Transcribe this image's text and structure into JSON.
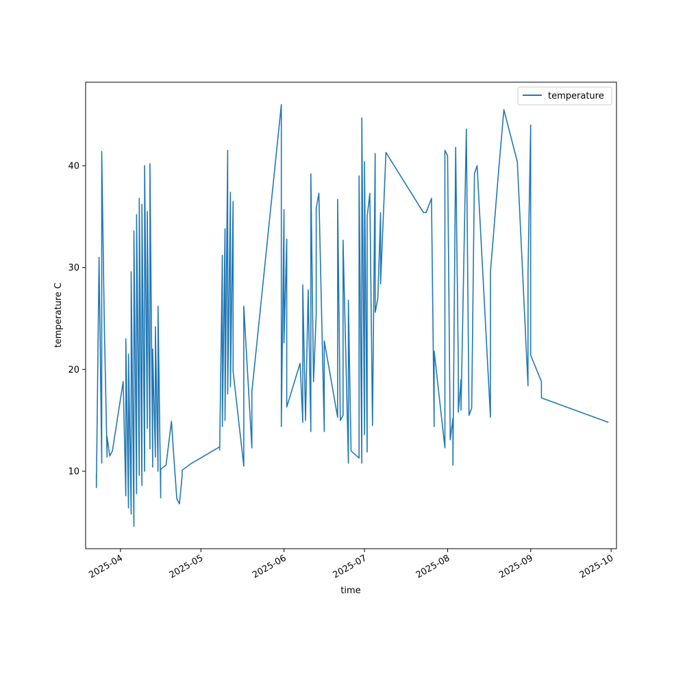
{
  "chart_data": {
    "type": "line",
    "xlabel": "time",
    "ylabel": "temperature C",
    "x_type": "date",
    "xlim": [
      "2025-03-19",
      "2025-10-03"
    ],
    "ylim": [
      2.4,
      48.2
    ],
    "grid": false,
    "legend_position": "top-right",
    "x_ticks": [
      "2025-04",
      "2025-05",
      "2025-06",
      "2025-07",
      "2025-08",
      "2025-09",
      "2025-10"
    ],
    "y_ticks": [
      10,
      20,
      30,
      40
    ],
    "series": [
      {
        "name": "temperature",
        "color": "#1f77b4",
        "points": [
          [
            "2025-03-23",
            9.8
          ],
          [
            "2025-03-23",
            8.4
          ],
          [
            "2025-03-24",
            31.0
          ],
          [
            "2025-03-25",
            10.8
          ],
          [
            "2025-03-25",
            41.4
          ],
          [
            "2025-03-26",
            24.0
          ],
          [
            "2025-03-27",
            11.4
          ],
          [
            "2025-03-27",
            13.4
          ],
          [
            "2025-03-28",
            11.5
          ],
          [
            "2025-03-29",
            12.0
          ],
          [
            "2025-04-02",
            18.8
          ],
          [
            "2025-04-03",
            7.6
          ],
          [
            "2025-04-03",
            23.0
          ],
          [
            "2025-04-04",
            6.4
          ],
          [
            "2025-04-04",
            21.5
          ],
          [
            "2025-04-05",
            5.8
          ],
          [
            "2025-04-05",
            29.6
          ],
          [
            "2025-04-06",
            4.6
          ],
          [
            "2025-04-06",
            33.6
          ],
          [
            "2025-04-07",
            7.8
          ],
          [
            "2025-04-07",
            35.2
          ],
          [
            "2025-04-08",
            9.6
          ],
          [
            "2025-04-08",
            36.8
          ],
          [
            "2025-04-09",
            8.6
          ],
          [
            "2025-04-09",
            36.2
          ],
          [
            "2025-04-10",
            10.0
          ],
          [
            "2025-04-10",
            40.0
          ],
          [
            "2025-04-11",
            14.2
          ],
          [
            "2025-04-11",
            35.5
          ],
          [
            "2025-04-12",
            12.2
          ],
          [
            "2025-04-12",
            40.2
          ],
          [
            "2025-04-13",
            10.4
          ],
          [
            "2025-04-13",
            22.0
          ],
          [
            "2025-04-14",
            11.4
          ],
          [
            "2025-04-14",
            24.2
          ],
          [
            "2025-04-15",
            10.0
          ],
          [
            "2025-04-15",
            26.2
          ],
          [
            "2025-04-16",
            7.4
          ],
          [
            "2025-04-16",
            10.2
          ],
          [
            "2025-04-18",
            10.6
          ],
          [
            "2025-04-20",
            14.9
          ],
          [
            "2025-04-21",
            11.0
          ],
          [
            "2025-04-22",
            7.3
          ],
          [
            "2025-04-23",
            6.8
          ],
          [
            "2025-04-24",
            9.6
          ],
          [
            "2025-04-24",
            10.1
          ],
          [
            "2025-04-27",
            10.7
          ],
          [
            "2025-05-08",
            12.4
          ],
          [
            "2025-05-08",
            12.1
          ],
          [
            "2025-05-09",
            31.2
          ],
          [
            "2025-05-09",
            14.4
          ],
          [
            "2025-05-10",
            33.8
          ],
          [
            "2025-05-10",
            15.0
          ],
          [
            "2025-05-11",
            41.5
          ],
          [
            "2025-05-11",
            17.6
          ],
          [
            "2025-05-12",
            37.4
          ],
          [
            "2025-05-12",
            18.3
          ],
          [
            "2025-05-13",
            36.5
          ],
          [
            "2025-05-13",
            19.8
          ],
          [
            "2025-05-17",
            10.5
          ],
          [
            "2025-05-17",
            26.2
          ],
          [
            "2025-05-20",
            12.3
          ],
          [
            "2025-05-20",
            17.8
          ],
          [
            "2025-05-31",
            46.0
          ],
          [
            "2025-05-31",
            14.4
          ],
          [
            "2025-06-01",
            35.7
          ],
          [
            "2025-06-01",
            22.6
          ],
          [
            "2025-06-02",
            32.8
          ],
          [
            "2025-06-02",
            16.3
          ],
          [
            "2025-06-07",
            20.6
          ],
          [
            "2025-06-08",
            14.8
          ],
          [
            "2025-06-08",
            28.3
          ],
          [
            "2025-06-09",
            15.0
          ],
          [
            "2025-06-10",
            27.8
          ],
          [
            "2025-06-11",
            13.9
          ],
          [
            "2025-06-11",
            39.2
          ],
          [
            "2025-06-12",
            18.8
          ],
          [
            "2025-06-13",
            25.4
          ],
          [
            "2025-06-13",
            35.8
          ],
          [
            "2025-06-14",
            37.3
          ],
          [
            "2025-06-16",
            13.9
          ],
          [
            "2025-06-16",
            22.8
          ],
          [
            "2025-06-21",
            15.3
          ],
          [
            "2025-06-21",
            36.7
          ],
          [
            "2025-06-22",
            15.0
          ],
          [
            "2025-06-23",
            15.5
          ],
          [
            "2025-06-23",
            32.7
          ],
          [
            "2025-06-25",
            10.8
          ],
          [
            "2025-06-25",
            26.8
          ],
          [
            "2025-06-26",
            12.0
          ],
          [
            "2025-06-29",
            11.3
          ],
          [
            "2025-06-29",
            39.0
          ],
          [
            "2025-06-30",
            10.8
          ],
          [
            "2025-06-30",
            44.7
          ],
          [
            "2025-07-01",
            13.6
          ],
          [
            "2025-07-01",
            40.4
          ],
          [
            "2025-07-02",
            11.9
          ],
          [
            "2025-07-02",
            35.0
          ],
          [
            "2025-07-03",
            37.3
          ],
          [
            "2025-07-04",
            14.5
          ],
          [
            "2025-07-05",
            41.2
          ],
          [
            "2025-07-05",
            25.6
          ],
          [
            "2025-07-06",
            27.0
          ],
          [
            "2025-07-07",
            35.4
          ],
          [
            "2025-07-07",
            28.4
          ],
          [
            "2025-07-09",
            41.3
          ],
          [
            "2025-07-23",
            35.4
          ],
          [
            "2025-07-24",
            35.4
          ],
          [
            "2025-07-26",
            36.8
          ],
          [
            "2025-07-27",
            14.4
          ],
          [
            "2025-07-27",
            21.8
          ],
          [
            "2025-07-31",
            12.3
          ],
          [
            "2025-07-31",
            41.5
          ],
          [
            "2025-08-01",
            41.0
          ],
          [
            "2025-08-02",
            13.1
          ],
          [
            "2025-08-03",
            15.2
          ],
          [
            "2025-08-03",
            10.6
          ],
          [
            "2025-08-04",
            41.8
          ],
          [
            "2025-08-05",
            20.2
          ],
          [
            "2025-08-05",
            15.8
          ],
          [
            "2025-08-06",
            19.0
          ],
          [
            "2025-08-06",
            16.0
          ],
          [
            "2025-08-07",
            29.8
          ],
          [
            "2025-08-08",
            43.6
          ],
          [
            "2025-08-09",
            15.5
          ],
          [
            "2025-08-10",
            16.2
          ],
          [
            "2025-08-11",
            39.2
          ],
          [
            "2025-08-12",
            40.0
          ],
          [
            "2025-08-17",
            15.3
          ],
          [
            "2025-08-17",
            29.6
          ],
          [
            "2025-08-20",
            39.4
          ],
          [
            "2025-08-22",
            45.5
          ],
          [
            "2025-08-27",
            40.4
          ],
          [
            "2025-08-31",
            18.4
          ],
          [
            "2025-08-31",
            29.4
          ],
          [
            "2025-09-01",
            44.0
          ],
          [
            "2025-09-01",
            21.4
          ],
          [
            "2025-09-05",
            18.8
          ],
          [
            "2025-09-05",
            17.2
          ],
          [
            "2025-09-30",
            14.8
          ]
        ]
      }
    ]
  }
}
